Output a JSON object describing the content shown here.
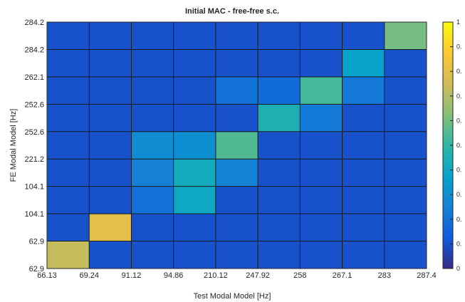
{
  "chart_data": {
    "type": "heatmap",
    "title": "Initial MAC - free-free s.c.",
    "xlabel": "Test Modal Model [Hz]",
    "ylabel": "FE Modal Model [Hz]",
    "x_tick_labels": [
      "66.13",
      "69.24",
      "91.12",
      "94.86",
      "210.12",
      "247.92",
      "258",
      "267.1",
      "283",
      "287.4"
    ],
    "y_tick_labels": [
      "62.9",
      "62.9",
      "104.1",
      "104.1",
      "221.2",
      "252.6",
      "252.6",
      "262.1",
      "284.2",
      "284.2"
    ],
    "colorbar_tick_labels": [
      "0",
      "0.",
      "0.",
      "0.",
      "0.",
      "0.",
      "0.",
      "0.",
      "0.",
      "0.",
      "1"
    ],
    "clim": [
      0,
      1
    ],
    "colormap": "parula",
    "grid": true,
    "rows_bottom_to_top": [
      [
        0.73,
        0.1,
        0.1,
        0.1,
        0.1,
        0.1,
        0.1,
        0.1,
        0.1
      ],
      [
        0.1,
        0.8,
        0.1,
        0.1,
        0.1,
        0.1,
        0.1,
        0.1,
        0.1
      ],
      [
        0.1,
        0.1,
        0.2,
        0.4,
        0.1,
        0.1,
        0.1,
        0.1,
        0.1
      ],
      [
        0.1,
        0.1,
        0.25,
        0.42,
        0.26,
        0.1,
        0.1,
        0.1,
        0.1
      ],
      [
        0.1,
        0.1,
        0.29,
        0.3,
        0.55,
        0.1,
        0.1,
        0.1,
        0.1
      ],
      [
        0.1,
        0.1,
        0.1,
        0.1,
        0.1,
        0.45,
        0.23,
        0.1,
        0.1
      ],
      [
        0.1,
        0.1,
        0.1,
        0.1,
        0.2,
        0.18,
        0.53,
        0.22,
        0.1
      ],
      [
        0.1,
        0.1,
        0.1,
        0.1,
        0.1,
        0.1,
        0.1,
        0.37,
        0.1
      ],
      [
        0.1,
        0.1,
        0.1,
        0.1,
        0.1,
        0.1,
        0.1,
        0.1,
        0.6
      ]
    ]
  }
}
